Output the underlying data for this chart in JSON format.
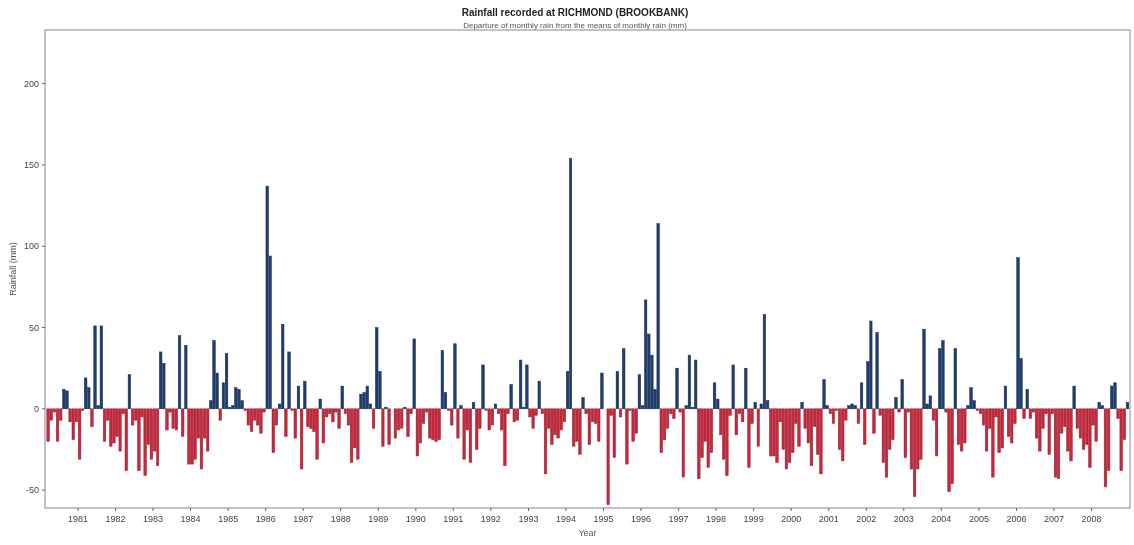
{
  "chart_data": {
    "type": "bar",
    "title": "Rainfall recorded at RICHMOND (BROOKBANK)",
    "subtitle": "Departure of monthly rain from the means of monthly rain (mm)",
    "xlabel": "Year",
    "ylabel": "Rainfall (mm)",
    "x": [
      "1980-03",
      "1980-04",
      "1980-05",
      "1980-06",
      "1980-07",
      "1980-08",
      "1980-09",
      "1980-10",
      "1980-11",
      "1980-12",
      "1981-01",
      "1981-02",
      "1981-03",
      "1981-04",
      "1981-05",
      "1981-06",
      "1981-07",
      "1981-08",
      "1981-09",
      "1981-10",
      "1981-11",
      "1981-12",
      "1982-01",
      "1982-02",
      "1982-03",
      "1982-04",
      "1982-05",
      "1982-06",
      "1982-07",
      "1982-08",
      "1982-09",
      "1982-10",
      "1982-11",
      "1982-12",
      "1983-01",
      "1983-02",
      "1983-03",
      "1983-04",
      "1983-05",
      "1983-06",
      "1983-07",
      "1983-08",
      "1983-09",
      "1983-10",
      "1983-11",
      "1983-12",
      "1984-01",
      "1984-02",
      "1984-03",
      "1984-04",
      "1984-05",
      "1984-06",
      "1984-07",
      "1984-08",
      "1984-09",
      "1984-10",
      "1984-11",
      "1984-12",
      "1985-01",
      "1985-02",
      "1985-03",
      "1985-04",
      "1985-05",
      "1985-06",
      "1985-07",
      "1985-08",
      "1985-09",
      "1985-10",
      "1985-11",
      "1985-12",
      "1986-01",
      "1986-02",
      "1986-03",
      "1986-04",
      "1986-05",
      "1986-06",
      "1986-07",
      "1986-08",
      "1986-09",
      "1986-10",
      "1986-11",
      "1986-12",
      "1987-01",
      "1987-02",
      "1987-03",
      "1987-04",
      "1987-05",
      "1987-06",
      "1987-07",
      "1987-08",
      "1987-09",
      "1987-10",
      "1987-11",
      "1987-12",
      "1988-01",
      "1988-02",
      "1988-03",
      "1988-04",
      "1988-05",
      "1988-06",
      "1988-07",
      "1988-08",
      "1988-09",
      "1988-10",
      "1988-11",
      "1988-12",
      "1989-01",
      "1989-02",
      "1989-03",
      "1989-04",
      "1989-05",
      "1989-06",
      "1989-07",
      "1989-08",
      "1989-09",
      "1989-10",
      "1989-11",
      "1989-12",
      "1990-01",
      "1990-02",
      "1990-03",
      "1990-04",
      "1990-05",
      "1990-06",
      "1990-07",
      "1990-08",
      "1990-09",
      "1990-10",
      "1990-11",
      "1990-12",
      "1991-01",
      "1991-02",
      "1991-03",
      "1991-04",
      "1991-05",
      "1991-06",
      "1991-07",
      "1991-08",
      "1991-09",
      "1991-10",
      "1991-11",
      "1991-12",
      "1992-01",
      "1992-02",
      "1992-03",
      "1992-04",
      "1992-05",
      "1992-06",
      "1992-07",
      "1992-08",
      "1992-09",
      "1992-10",
      "1992-11",
      "1992-12",
      "1993-01",
      "1993-02",
      "1993-03",
      "1993-04",
      "1993-05",
      "1993-06",
      "1993-07",
      "1993-08",
      "1993-09",
      "1993-10",
      "1993-11",
      "1993-12",
      "1994-01",
      "1994-02",
      "1994-03",
      "1994-04",
      "1994-05",
      "1994-06",
      "1994-07",
      "1994-08",
      "1994-09",
      "1994-10",
      "1994-11",
      "1994-12",
      "1995-01",
      "1995-02",
      "1995-03",
      "1995-04",
      "1995-05",
      "1995-06",
      "1995-07",
      "1995-08",
      "1995-09",
      "1995-10",
      "1995-11",
      "1995-12",
      "1996-01",
      "1996-02",
      "1996-03",
      "1996-04",
      "1996-05",
      "1996-06",
      "1996-07",
      "1996-08",
      "1996-09",
      "1996-10",
      "1996-11",
      "1996-12",
      "1997-01",
      "1997-02",
      "1997-03",
      "1997-04",
      "1997-05",
      "1997-06",
      "1997-07",
      "1997-08",
      "1997-09",
      "1997-10",
      "1997-11",
      "1997-12",
      "1998-01",
      "1998-02",
      "1998-03",
      "1998-04",
      "1998-05",
      "1998-06",
      "1998-07",
      "1998-08",
      "1998-09",
      "1998-10",
      "1998-11",
      "1998-12",
      "1999-01",
      "1999-02",
      "1999-03",
      "1999-04",
      "1999-05",
      "1999-06",
      "1999-07",
      "1999-08",
      "1999-09",
      "1999-10",
      "1999-11",
      "1999-12",
      "2000-01",
      "2000-02",
      "2000-03",
      "2000-04",
      "2000-05",
      "2000-06",
      "2000-07",
      "2000-08",
      "2000-09",
      "2000-10",
      "2000-11",
      "2000-12",
      "2001-01",
      "2001-02",
      "2001-03",
      "2001-04",
      "2001-05",
      "2001-06",
      "2001-07",
      "2001-08",
      "2001-09",
      "2001-10",
      "2001-11",
      "2001-12",
      "2002-01",
      "2002-02",
      "2002-03",
      "2002-04",
      "2002-05",
      "2002-06",
      "2002-07",
      "2002-08",
      "2002-09",
      "2002-10",
      "2002-11",
      "2002-12",
      "2003-01",
      "2003-02",
      "2003-03",
      "2003-04",
      "2003-05",
      "2003-06",
      "2003-07",
      "2003-08",
      "2003-09",
      "2003-10",
      "2003-11",
      "2003-12",
      "2004-01",
      "2004-02",
      "2004-03",
      "2004-04",
      "2004-05",
      "2004-06",
      "2004-07",
      "2004-08",
      "2004-09",
      "2004-10",
      "2004-11",
      "2004-12",
      "2005-01",
      "2005-02",
      "2005-03",
      "2005-04",
      "2005-05",
      "2005-06",
      "2005-07",
      "2005-08",
      "2005-09",
      "2005-10",
      "2005-11",
      "2005-12",
      "2006-01",
      "2006-02",
      "2006-03",
      "2006-04",
      "2006-05",
      "2006-06",
      "2006-07",
      "2006-08",
      "2006-09",
      "2006-10",
      "2006-11",
      "2006-12",
      "2007-01",
      "2007-02",
      "2007-03",
      "2007-04",
      "2007-05",
      "2007-06",
      "2007-07",
      "2007-08",
      "2007-09",
      "2007-10",
      "2007-11",
      "2007-12",
      "2008-01",
      "2008-02",
      "2008-03",
      "2008-04",
      "2008-05",
      "2008-06",
      "2008-07",
      "2008-08",
      "2008-09",
      "2008-10",
      "2008-11",
      "2008-12"
    ],
    "values": [
      -20,
      -7,
      -2,
      -20,
      -7,
      12,
      11,
      -8,
      -19,
      -8,
      -31,
      -1,
      19,
      13,
      -11,
      51,
      2,
      51,
      -20,
      -7,
      -23,
      -21,
      -17,
      -26,
      -3,
      -38,
      21,
      -10,
      -7,
      -38,
      -5,
      -41,
      -22,
      -31,
      -26,
      -35,
      35,
      28,
      -13,
      -2,
      -12,
      -13,
      45,
      -17,
      39,
      -34,
      -34,
      -31,
      -18,
      -37,
      -18,
      -26,
      5,
      42,
      22,
      -7,
      16,
      34,
      1,
      2,
      13,
      12,
      5,
      -1,
      -10,
      -14,
      -7,
      -10,
      -15,
      -2,
      137,
      94,
      -27,
      -10,
      3,
      52,
      -17,
      35,
      -1,
      -18,
      14,
      -37,
      17,
      -11,
      -12,
      -14,
      -31,
      6,
      -21,
      -5,
      -3,
      -8,
      -2,
      -12,
      14,
      -3,
      -10,
      -33,
      -24,
      -31,
      9,
      10,
      14,
      3,
      -12,
      50,
      23,
      -23,
      1,
      -22,
      0,
      -18,
      -13,
      -12,
      1,
      -17,
      -3,
      43,
      -29,
      -21,
      -9,
      -2,
      -18,
      -19,
      -20,
      -19,
      36,
      10,
      -1,
      -10,
      40,
      -18,
      2,
      -31,
      -13,
      -33,
      4,
      -25,
      -12,
      27,
      -1,
      -13,
      -10,
      3,
      -3,
      -13,
      -35,
      -3,
      15,
      -8,
      -7,
      30,
      1,
      27,
      -5,
      -12,
      -4,
      17,
      -3,
      -40,
      -12,
      -22,
      -16,
      -18,
      -13,
      -8,
      23,
      154,
      -23,
      -20,
      -28,
      7,
      -3,
      -22,
      -8,
      -9,
      -20,
      22,
      0,
      -59,
      -4,
      -30,
      23,
      -5,
      37,
      -34,
      -1,
      -20,
      -15,
      21,
      2,
      67,
      46,
      33,
      12,
      114,
      -27,
      -19,
      -12,
      -3,
      -6,
      25,
      -2,
      -42,
      2,
      33,
      1,
      30,
      -43,
      -30,
      -20,
      -36,
      -27,
      16,
      6,
      -16,
      -31,
      -41,
      -4,
      27,
      -16,
      -3,
      -8,
      25,
      -36,
      -9,
      4,
      -23,
      3,
      58,
      5,
      -29,
      -29,
      -33,
      -8,
      -25,
      -37,
      -33,
      -27,
      -9,
      -23,
      4,
      -12,
      -21,
      -35,
      -11,
      -28,
      -40,
      18,
      2,
      -3,
      -9,
      -1,
      -25,
      -32,
      -7,
      2,
      3,
      2,
      -9,
      16,
      -22,
      29,
      54,
      -15,
      47,
      -4,
      -33,
      -42,
      -25,
      -19,
      7,
      -2,
      18,
      -30,
      -2,
      -37,
      -54,
      -37,
      -31,
      49,
      3,
      8,
      -7,
      -29,
      37,
      42,
      -2,
      -51,
      -46,
      37,
      -22,
      -26,
      -21,
      2,
      13,
      5,
      -1,
      -3,
      -10,
      -26,
      -12,
      -42,
      -5,
      -27,
      -24,
      14,
      -17,
      -21,
      -9,
      93,
      31,
      -6,
      12,
      -6,
      -2,
      -18,
      -26,
      -12,
      -3,
      -28,
      -3,
      -42,
      -43,
      -15,
      -11,
      -26,
      -32,
      14,
      -12,
      -18,
      -25,
      -22,
      -36,
      -10,
      -20,
      4,
      2,
      -48,
      -38,
      14,
      16,
      -6,
      -38,
      -19,
      4
    ],
    "colors": [
      "#c8283c",
      "#c8283c",
      "#c8283c",
      "#c8283c",
      "#c8283c",
      "#1f3d6f",
      "#1f3d6f",
      "#c8283c",
      "#c8283c",
      "#c8283c",
      "#c8283c",
      "#c8283c",
      "#1f3d6f",
      "#1f3d6f",
      "#c8283c",
      "#1f3d6f",
      "#1f3d6f",
      "#1f3d6f",
      "#c8283c",
      "#c8283c",
      "#c8283c",
      "#c8283c",
      "#c8283c",
      "#c8283c",
      "#c8283c",
      "#c8283c",
      "#1f3d6f",
      "#c8283c",
      "#c8283c",
      "#c8283c",
      "#c8283c",
      "#c8283c",
      "#c8283c",
      "#c8283c",
      "#c8283c",
      "#c8283c",
      "#1f3d6f",
      "#1f3d6f",
      "#c8283c",
      "#c8283c",
      "#c8283c",
      "#c8283c",
      "#1f3d6f",
      "#c8283c",
      "#1f3d6f",
      "#c8283c",
      "#c8283c",
      "#c8283c",
      "#c8283c",
      "#c8283c",
      "#c8283c",
      "#c8283c",
      "#1f3d6f",
      "#1f3d6f",
      "#1f3d6f",
      "#c8283c",
      "#1f3d6f",
      "#1f3d6f",
      "#1f3d6f",
      "#1f3d6f",
      "#1f3d6f",
      "#1f3d6f",
      "#1f3d6f",
      "#c8283c",
      "#c8283c",
      "#c8283c",
      "#c8283c",
      "#c8283c",
      "#c8283c",
      "#c8283c",
      "#1f3d6f",
      "#1f3d6f",
      "#c8283c",
      "#c8283c",
      "#1f3d6f",
      "#1f3d6f",
      "#c8283c",
      "#1f3d6f",
      "#c8283c",
      "#c8283c",
      "#1f3d6f",
      "#c8283c",
      "#1f3d6f",
      "#c8283c",
      "#c8283c",
      "#c8283c",
      "#c8283c",
      "#1f3d6f",
      "#c8283c",
      "#c8283c",
      "#c8283c",
      "#c8283c",
      "#c8283c",
      "#c8283c",
      "#1f3d6f",
      "#c8283c",
      "#c8283c",
      "#c8283c",
      "#c8283c",
      "#c8283c",
      "#1f3d6f",
      "#1f3d6f",
      "#1f3d6f",
      "#1f3d6f",
      "#c8283c",
      "#1f3d6f",
      "#1f3d6f",
      "#c8283c",
      "#1f3d6f",
      "#c8283c",
      "#1f3d6f",
      "#c8283c",
      "#c8283c",
      "#c8283c",
      "#1f3d6f",
      "#c8283c",
      "#c8283c",
      "#1f3d6f",
      "#c8283c",
      "#c8283c",
      "#c8283c",
      "#c8283c",
      "#c8283c",
      "#c8283c",
      "#c8283c",
      "#c8283c",
      "#1f3d6f",
      "#1f3d6f",
      "#c8283c",
      "#c8283c",
      "#1f3d6f",
      "#c8283c",
      "#1f3d6f",
      "#c8283c",
      "#c8283c",
      "#c8283c",
      "#1f3d6f",
      "#c8283c",
      "#c8283c",
      "#1f3d6f",
      "#c8283c",
      "#c8283c",
      "#c8283c",
      "#1f3d6f",
      "#c8283c",
      "#c8283c",
      "#c8283c",
      "#c8283c",
      "#1f3d6f",
      "#c8283c",
      "#c8283c",
      "#1f3d6f",
      "#1f3d6f",
      "#1f3d6f",
      "#c8283c",
      "#c8283c",
      "#c8283c",
      "#1f3d6f",
      "#c8283c",
      "#c8283c",
      "#c8283c",
      "#c8283c",
      "#c8283c",
      "#c8283c",
      "#c8283c",
      "#c8283c",
      "#1f3d6f",
      "#1f3d6f",
      "#c8283c",
      "#c8283c",
      "#c8283c",
      "#1f3d6f",
      "#c8283c",
      "#c8283c",
      "#c8283c",
      "#c8283c",
      "#c8283c",
      "#1f3d6f",
      "#1f3d6f",
      "#c8283c",
      "#c8283c",
      "#c8283c",
      "#1f3d6f",
      "#c8283c",
      "#1f3d6f",
      "#c8283c",
      "#c8283c",
      "#c8283c",
      "#c8283c",
      "#1f3d6f",
      "#1f3d6f",
      "#1f3d6f",
      "#1f3d6f",
      "#1f3d6f",
      "#1f3d6f",
      "#1f3d6f",
      "#c8283c",
      "#c8283c",
      "#c8283c",
      "#c8283c",
      "#c8283c",
      "#1f3d6f",
      "#c8283c",
      "#c8283c",
      "#1f3d6f",
      "#1f3d6f",
      "#1f3d6f",
      "#1f3d6f",
      "#c8283c",
      "#c8283c",
      "#c8283c",
      "#c8283c",
      "#c8283c",
      "#1f3d6f",
      "#1f3d6f",
      "#c8283c",
      "#c8283c",
      "#c8283c",
      "#c8283c",
      "#1f3d6f",
      "#c8283c",
      "#c8283c",
      "#c8283c",
      "#1f3d6f",
      "#c8283c",
      "#c8283c",
      "#1f3d6f",
      "#c8283c",
      "#1f3d6f",
      "#1f3d6f",
      "#1f3d6f",
      "#c8283c",
      "#c8283c",
      "#c8283c",
      "#c8283c",
      "#c8283c",
      "#c8283c",
      "#c8283c",
      "#c8283c",
      "#c8283c",
      "#c8283c",
      "#1f3d6f",
      "#c8283c",
      "#c8283c",
      "#c8283c",
      "#c8283c",
      "#c8283c",
      "#c8283c",
      "#1f3d6f",
      "#1f3d6f",
      "#c8283c",
      "#c8283c",
      "#c8283c",
      "#c8283c",
      "#c8283c",
      "#c8283c",
      "#1f3d6f",
      "#1f3d6f",
      "#1f3d6f",
      "#c8283c",
      "#1f3d6f",
      "#c8283c",
      "#1f3d6f",
      "#1f3d6f",
      "#c8283c",
      "#1f3d6f",
      "#c8283c",
      "#c8283c",
      "#c8283c",
      "#c8283c",
      "#c8283c",
      "#1f3d6f",
      "#c8283c",
      "#1f3d6f",
      "#c8283c",
      "#c8283c",
      "#c8283c",
      "#c8283c",
      "#c8283c",
      "#c8283c",
      "#1f3d6f",
      "#1f3d6f",
      "#1f3d6f",
      "#c8283c",
      "#c8283c",
      "#1f3d6f",
      "#1f3d6f",
      "#c8283c",
      "#c8283c",
      "#c8283c",
      "#1f3d6f",
      "#c8283c",
      "#c8283c",
      "#c8283c",
      "#1f3d6f",
      "#1f3d6f",
      "#1f3d6f",
      "#c8283c",
      "#c8283c",
      "#c8283c",
      "#c8283c",
      "#c8283c",
      "#c8283c",
      "#c8283c",
      "#c8283c",
      "#c8283c",
      "#1f3d6f",
      "#c8283c",
      "#c8283c",
      "#c8283c",
      "#1f3d6f",
      "#1f3d6f",
      "#c8283c",
      "#1f3d6f",
      "#c8283c",
      "#c8283c",
      "#c8283c",
      "#c8283c",
      "#c8283c",
      "#c8283c",
      "#c8283c",
      "#c8283c",
      "#c8283c",
      "#c8283c",
      "#c8283c",
      "#c8283c",
      "#c8283c",
      "#c8283c",
      "#1f3d6f",
      "#c8283c",
      "#c8283c",
      "#c8283c",
      "#c8283c",
      "#c8283c",
      "#c8283c",
      "#c8283c",
      "#1f3d6f",
      "#1f3d6f",
      "#c8283c",
      "#c8283c",
      "#1f3d6f",
      "#1f3d6f",
      "#c8283c",
      "#c8283c",
      "#c8283c",
      "#1f3d6f"
    ],
    "xlim": [
      "1980-02-15",
      "2009-01-10"
    ],
    "xticks": [
      "1981",
      "1982",
      "1983",
      "1984",
      "1985",
      "1986",
      "1987",
      "1988",
      "1989",
      "1990",
      "1991",
      "1992",
      "1993",
      "1994",
      "1995",
      "1996",
      "1997",
      "1998",
      "1999",
      "2000",
      "2001",
      "2002",
      "2003",
      "2004",
      "2005",
      "2006",
      "2007",
      "2008"
    ],
    "ylim": [
      -61,
      233
    ],
    "yticks": [
      -50,
      0,
      50,
      100,
      150,
      200
    ],
    "grid": false
  }
}
